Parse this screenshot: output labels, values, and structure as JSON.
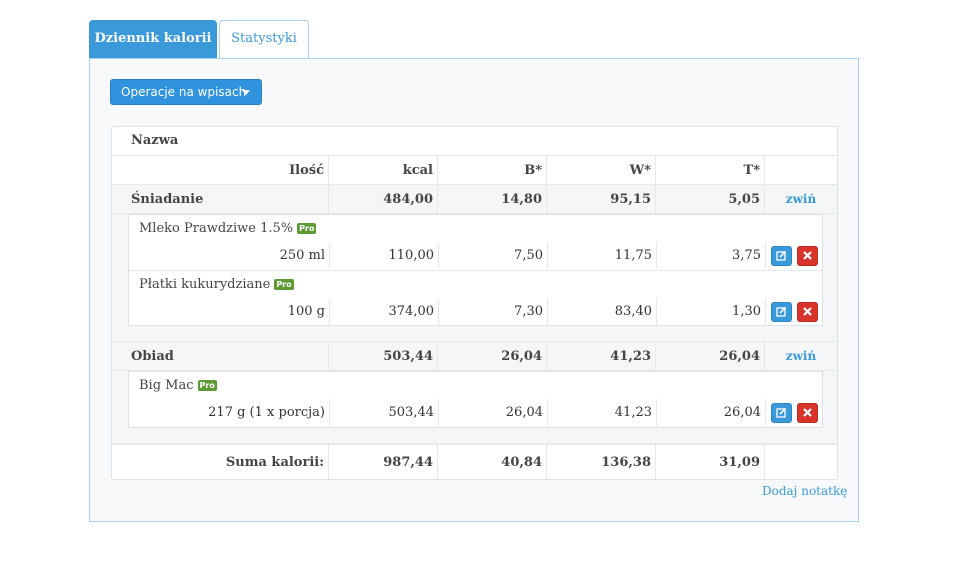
{
  "tabs": [
    {
      "label": "Dziennik kalorii",
      "active": true
    },
    {
      "label": "Statystyki",
      "active": false
    }
  ],
  "operations_button": {
    "label": "Operacje na wpisach"
  },
  "table": {
    "name_header": "Nazwa",
    "columns": [
      "Ilość",
      "kcal",
      "B*",
      "W*",
      "T*"
    ],
    "meals": [
      {
        "name": "Śniadanie",
        "kcal": "484,00",
        "b": "14,80",
        "w": "95,15",
        "t": "5,05",
        "toggle": "zwiń",
        "items": [
          {
            "name": "Mleko Prawdziwe 1.5%",
            "badge": "Pro",
            "qty": "250 ml",
            "kcal": "110,00",
            "b": "7,50",
            "w": "11,75",
            "t": "3,75"
          },
          {
            "name": "Płatki kukurydziane",
            "badge": "Pro",
            "qty": "100 g",
            "kcal": "374,00",
            "b": "7,30",
            "w": "83,40",
            "t": "1,30"
          }
        ]
      },
      {
        "name": "Obiad",
        "kcal": "503,44",
        "b": "26,04",
        "w": "41,23",
        "t": "26,04",
        "toggle": "zwiń",
        "items": [
          {
            "name": "Big Mac",
            "badge": "Pro",
            "qty": "217 g (1 x porcja)",
            "kcal": "503,44",
            "b": "26,04",
            "w": "41,23",
            "t": "26,04"
          }
        ]
      }
    ],
    "summary": {
      "label": "Suma kalorii:",
      "kcal": "987,44",
      "b": "40,84",
      "w": "136,38",
      "t": "31,09"
    }
  },
  "add_note": "Dodaj notatkę",
  "colors": {
    "accent": "#3a9ad9",
    "danger": "#d9342b",
    "pro_badge": "#5c9b34"
  },
  "icons": {
    "edit": "edit-icon",
    "delete": "delete-icon",
    "dropdown": "caret-down-icon"
  }
}
